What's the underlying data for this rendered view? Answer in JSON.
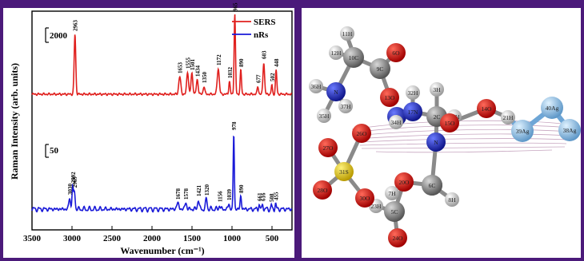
{
  "colors": {
    "frame": "#4b1a7a",
    "sers": "#e0201e",
    "nrs": "#1a1ad8",
    "panel_bg": "#ffffff"
  },
  "chart_data": {
    "type": "line",
    "xlabel": "Wavenumber (cm⁻¹)",
    "ylabel": "Raman Intensity (arb. units)",
    "xlim": [
      3500,
      250
    ],
    "x_ticks": [
      "3500",
      "3000",
      "2500",
      "2000",
      "1500",
      "1000",
      "500"
    ],
    "scale_bars": [
      {
        "label": "2000",
        "series": "SERS"
      },
      {
        "label": "50",
        "series": "nRs"
      }
    ],
    "legend": {
      "placement": "top-right"
    },
    "series": [
      {
        "name": "SERS",
        "color": "#e0201e",
        "baseline": 0,
        "peaks": [
          {
            "x": 2963,
            "label": "2963",
            "h": 75,
            "w": 14
          },
          {
            "x": 1653,
            "label": "1653",
            "h": 22,
            "w": 18
          },
          {
            "x": 1555,
            "label": "1555",
            "h": 28,
            "w": 16
          },
          {
            "x": 1501,
            "label": "1501",
            "h": 26,
            "w": 16
          },
          {
            "x": 1434,
            "label": "1434",
            "h": 18,
            "w": 16
          },
          {
            "x": 1350,
            "label": "1350",
            "h": 10,
            "w": 14
          },
          {
            "x": 1172,
            "label": "1172",
            "h": 32,
            "w": 18
          },
          {
            "x": 1032,
            "label": "1032",
            "h": 16,
            "w": 12
          },
          {
            "x": 965,
            "label": "965",
            "h": 100,
            "w": 12
          },
          {
            "x": 890,
            "label": "890",
            "h": 30,
            "w": 12
          },
          {
            "x": 677,
            "label": "677",
            "h": 10,
            "w": 12
          },
          {
            "x": 603,
            "label": "603",
            "h": 40,
            "w": 14
          },
          {
            "x": 502,
            "label": "502",
            "h": 12,
            "w": 10
          },
          {
            "x": 448,
            "label": "448",
            "h": 30,
            "w": 12
          }
        ]
      },
      {
        "name": "nRs",
        "color": "#1a1ad8",
        "baseline": 0,
        "peaks": [
          {
            "x": 3030,
            "label": "3030",
            "h": 14,
            "w": 14
          },
          {
            "x": 2992,
            "label": "2992",
            "h": 28,
            "w": 12
          },
          {
            "x": 2969,
            "label": "2969",
            "h": 22,
            "w": 12
          },
          {
            "x": 1678,
            "label": "1678",
            "h": 8,
            "w": 18
          },
          {
            "x": 1578,
            "label": "1578",
            "h": 8,
            "w": 16
          },
          {
            "x": 1421,
            "label": "1421",
            "h": 12,
            "w": 14
          },
          {
            "x": 1320,
            "label": "1320",
            "h": 13,
            "w": 14
          },
          {
            "x": 1156,
            "label": "1156",
            "h": 5,
            "w": 12
          },
          {
            "x": 1039,
            "label": "1039",
            "h": 7,
            "w": 12
          },
          {
            "x": 978,
            "label": "978",
            "h": 95,
            "w": 10
          },
          {
            "x": 890,
            "label": "890",
            "h": 16,
            "w": 12
          },
          {
            "x": 661,
            "label": "661",
            "h": 6,
            "w": 10
          },
          {
            "x": 616,
            "label": "616",
            "h": 6,
            "w": 10
          },
          {
            "x": 508,
            "label": "508",
            "h": 5,
            "w": 8
          },
          {
            "x": 455,
            "label": "455",
            "h": 7,
            "w": 10
          }
        ]
      }
    ]
  },
  "molecule": {
    "atoms": [
      {
        "label": "11H",
        "el": "H"
      },
      {
        "label": "12H",
        "el": "H"
      },
      {
        "label": "10C",
        "el": "C"
      },
      {
        "label": "9C",
        "el": "C"
      },
      {
        "label": "6O",
        "el": "O"
      },
      {
        "label": "36H",
        "el": "H"
      },
      {
        "label": "N",
        "el": "N"
      },
      {
        "label": "37H",
        "el": "H"
      },
      {
        "label": "35H",
        "el": "H"
      },
      {
        "label": "13O",
        "el": "O"
      },
      {
        "label": "32H",
        "el": "H"
      },
      {
        "label": "3H",
        "el": "H"
      },
      {
        "label": "N",
        "el": "N"
      },
      {
        "label": "34H",
        "el": "H"
      },
      {
        "label": "17N",
        "el": "N"
      },
      {
        "label": "2C",
        "el": "C"
      },
      {
        "label": "16H",
        "el": "H"
      },
      {
        "label": "15O",
        "el": "O"
      },
      {
        "label": "14O",
        "el": "O"
      },
      {
        "label": "21H",
        "el": "H"
      },
      {
        "label": "39Ag",
        "el": "Ag"
      },
      {
        "label": "40Ag",
        "el": "Ag"
      },
      {
        "label": "38Ag",
        "el": "Ag"
      },
      {
        "label": "26O",
        "el": "O"
      },
      {
        "label": "33H",
        "el": "H"
      },
      {
        "label": "N",
        "el": "N"
      },
      {
        "label": "27O",
        "el": "O"
      },
      {
        "label": "31S",
        "el": "S"
      },
      {
        "label": "28O",
        "el": "O"
      },
      {
        "label": "20O",
        "el": "O"
      },
      {
        "label": "C",
        "el": "C"
      },
      {
        "label": "7H",
        "el": "H"
      },
      {
        "label": "6C",
        "el": "C"
      },
      {
        "label": "23H",
        "el": "H"
      },
      {
        "label": "8H",
        "el": "H"
      },
      {
        "label": "30O",
        "el": "O"
      },
      {
        "label": "5C",
        "el": "C"
      },
      {
        "label": "24O",
        "el": "O"
      }
    ]
  }
}
